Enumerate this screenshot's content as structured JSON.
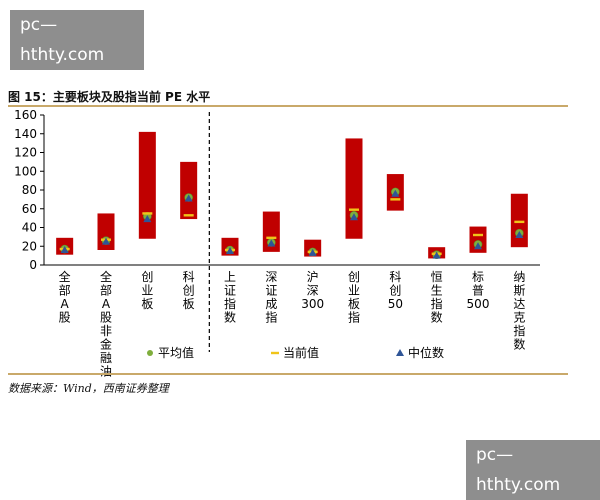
{
  "watermark": {
    "top_text": "pc—hthty.com",
    "bottom_text": "pc—hthty.com"
  },
  "figure_title": "图 15：主要板块及股指当前 PE 水平",
  "source_note": "数据来源：Wind，西南证券整理",
  "colors": {
    "bar": "#c00000",
    "mean_marker": "#7fae3c",
    "current_marker": "#f0c419",
    "median_marker": "#2f5597",
    "rule": "#c9a96a",
    "divider": "#000000"
  },
  "chart_data": {
    "type": "bar",
    "subtype": "floating-range-with-markers",
    "title": "",
    "xlabel": "",
    "ylabel": "",
    "ylim": [
      0,
      160
    ],
    "yticks": [
      0,
      20,
      40,
      60,
      80,
      100,
      120,
      140,
      160
    ],
    "grid": false,
    "legend_position": "bottom",
    "categories": [
      "全部A股",
      "全部A股非金融油",
      "创业板",
      "科创板",
      "上证指数",
      "深证成指",
      "沪深300",
      "创业板指",
      "科创50",
      "恒生指数",
      "标普500",
      "纳斯达克指数"
    ],
    "ranges": [
      {
        "low": 11,
        "high": 29
      },
      {
        "low": 16,
        "high": 55
      },
      {
        "low": 28,
        "high": 142
      },
      {
        "low": 49,
        "high": 110
      },
      {
        "low": 10,
        "high": 29
      },
      {
        "low": 14,
        "high": 57
      },
      {
        "low": 9,
        "high": 27
      },
      {
        "low": 28,
        "high": 135
      },
      {
        "low": 58,
        "high": 97
      },
      {
        "low": 7,
        "high": 19
      },
      {
        "low": 13,
        "high": 41
      },
      {
        "low": 19,
        "high": 76
      }
    ],
    "series": [
      {
        "name": "平均值",
        "marker": "circle",
        "values": [
          17,
          26,
          52,
          72,
          16,
          24,
          14,
          53,
          78,
          11,
          22,
          34
        ]
      },
      {
        "name": "当前值",
        "marker": "dash",
        "values": [
          17,
          27,
          55,
          53,
          16,
          29,
          14,
          59,
          70,
          12,
          32,
          46
        ]
      },
      {
        "name": "中位数",
        "marker": "triangle",
        "values": [
          16,
          25,
          49,
          71,
          15,
          23,
          13,
          51,
          76,
          10,
          20,
          32
        ]
      }
    ],
    "divider_after_index": 3
  }
}
